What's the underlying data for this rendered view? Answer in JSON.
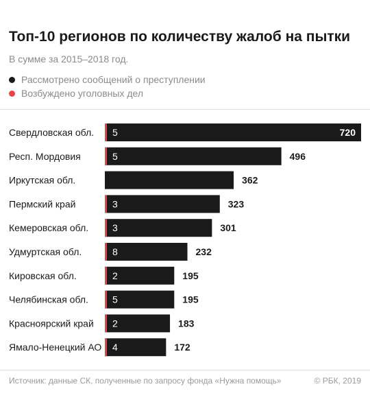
{
  "header": {
    "title": "Топ-10 регионов по количеству жалоб на пытки",
    "subtitle": "В сумме за 2015–2018 год."
  },
  "legend": [
    {
      "label": "Рассмотрено сообщений о преступлении",
      "color": "#1a1a1a"
    },
    {
      "label": "Возбуждено уголовных дел",
      "color": "#e8424b"
    }
  ],
  "footer": {
    "source": "Источник: данные СК, полученные по запросу фонда «Нужна помощь»",
    "copyright": "© РБК, 2019"
  },
  "chart_data": {
    "type": "bar",
    "orientation": "horizontal",
    "categories": [
      "Свердловская обл.",
      "Респ. Мордовия",
      "Иркутская обл.",
      "Пермский край",
      "Кемеровская обл.",
      "Удмуртская обл.",
      "Кировская обл.",
      "Челябинская обл.",
      "Красноярский край",
      "Ямало-Ненецкий АО"
    ],
    "series": [
      {
        "name": "Рассмотрено сообщений о преступлении",
        "color": "#1a1a1a",
        "values": [
          720,
          496,
          362,
          323,
          301,
          232,
          195,
          195,
          183,
          172
        ]
      },
      {
        "name": "Возбуждено уголовных дел",
        "color": "#e8424b",
        "values": [
          5,
          5,
          0,
          3,
          3,
          8,
          2,
          5,
          2,
          4
        ]
      }
    ],
    "inner_labels": [
      "5",
      "5",
      "",
      "3",
      "3",
      "8",
      "2",
      "5",
      "2",
      "4"
    ],
    "xlim": [
      0,
      720
    ]
  }
}
